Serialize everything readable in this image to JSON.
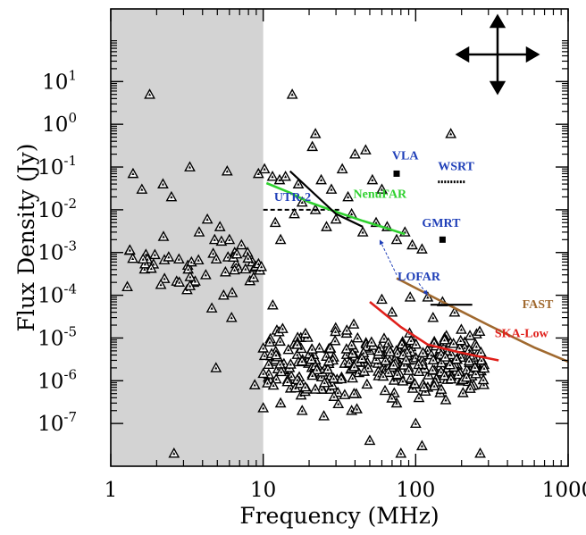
{
  "chart_data": {
    "type": "scatter",
    "xlabel": "Frequency (MHz)",
    "ylabel": "Flux Density (Jy)",
    "xscale": "log",
    "yscale": "log",
    "xlim": [
      1,
      1000
    ],
    "ylim": [
      1e-08,
      500
    ],
    "x_ticks": [
      {
        "value": 1,
        "label": "1"
      },
      {
        "value": 10,
        "label": "10"
      },
      {
        "value": 100,
        "label": "100"
      },
      {
        "value": 1000,
        "label": "1000"
      }
    ],
    "y_ticks": [
      {
        "value": 10,
        "base": "10",
        "exp": "1"
      },
      {
        "value": 1,
        "base": "10",
        "exp": "0"
      },
      {
        "value": 0.1,
        "base": "10",
        "exp": "-1"
      },
      {
        "value": 0.01,
        "base": "10",
        "exp": "-2"
      },
      {
        "value": 0.001,
        "base": "10",
        "exp": "-3"
      },
      {
        "value": 0.0001,
        "base": "10",
        "exp": "-4"
      },
      {
        "value": 1e-05,
        "base": "10",
        "exp": "-5"
      },
      {
        "value": 1e-06,
        "base": "10",
        "exp": "-6"
      },
      {
        "value": 1e-07,
        "base": "10",
        "exp": "-7"
      }
    ],
    "shaded_region": {
      "x_from": 1,
      "x_to": 10,
      "color": "#d3d3d3"
    },
    "grid": false,
    "sources_seed": 7,
    "sources": [
      [
        1.8,
        5
      ],
      [
        15.5,
        5
      ],
      [
        170,
        0.6
      ],
      [
        22,
        0.6
      ],
      [
        21,
        0.3
      ],
      [
        47,
        0.25
      ],
      [
        40,
        0.2
      ],
      [
        1.4,
        0.07
      ],
      [
        1.6,
        0.03
      ],
      [
        2.2,
        0.04
      ],
      [
        2.5,
        0.02
      ],
      [
        3.3,
        0.1
      ],
      [
        5.8,
        0.08
      ],
      [
        9.3,
        0.07
      ],
      [
        10.2,
        0.09
      ],
      [
        11.5,
        0.06
      ],
      [
        12.8,
        0.05
      ],
      [
        14,
        0.06
      ],
      [
        17,
        0.04
      ],
      [
        24,
        0.05
      ],
      [
        33,
        0.09
      ],
      [
        28,
        0.03
      ],
      [
        36,
        0.02
      ],
      [
        60,
        0.03
      ],
      [
        52,
        0.05
      ],
      [
        3.8,
        0.003
      ],
      [
        4.3,
        0.006
      ],
      [
        4.8,
        0.002
      ],
      [
        5.2,
        0.004
      ],
      [
        6,
        0.002
      ],
      [
        6.5,
        0.001
      ],
      [
        7.2,
        0.0015
      ],
      [
        7.9,
        0.001
      ],
      [
        8.5,
        0.0006
      ],
      [
        1.7,
        0.0009
      ],
      [
        2.8,
        0.0007
      ],
      [
        3.2,
        0.0005
      ],
      [
        4.2,
        0.0003
      ],
      [
        3.5,
        0.0002
      ],
      [
        4.6,
        5e-05
      ],
      [
        5.5,
        0.0001
      ],
      [
        6.2,
        3e-05
      ],
      [
        4.9,
        2e-06
      ],
      [
        8.8,
        8e-07
      ],
      [
        2.6,
        2e-08
      ],
      [
        12,
        0.005
      ],
      [
        13,
        0.002
      ],
      [
        16,
        0.008
      ],
      [
        18,
        0.015
      ],
      [
        22,
        0.01
      ],
      [
        26,
        0.004
      ],
      [
        30,
        0.006
      ],
      [
        38,
        0.008
      ],
      [
        45,
        0.003
      ],
      [
        55,
        0.005
      ],
      [
        65,
        0.004
      ],
      [
        75,
        0.002
      ],
      [
        85,
        0.003
      ],
      [
        95,
        0.0015
      ],
      [
        110,
        0.0012
      ],
      [
        60,
        8e-05
      ],
      [
        70,
        4e-05
      ],
      [
        92,
        9e-05
      ],
      [
        120,
        9e-05
      ],
      [
        150,
        7e-05
      ],
      [
        180,
        4e-05
      ],
      [
        130,
        3e-05
      ],
      [
        160,
        1e-05
      ],
      [
        210,
        8e-06
      ],
      [
        200,
        5e-06
      ],
      [
        170,
        3e-06
      ],
      [
        185,
        2e-06
      ],
      [
        150,
        1.5e-06
      ],
      [
        120,
        7e-07
      ],
      [
        105,
        4e-07
      ],
      [
        100,
        1e-07
      ],
      [
        110,
        3e-08
      ],
      [
        80,
        2e-08
      ],
      [
        265,
        2e-08
      ],
      [
        75,
        3e-07
      ],
      [
        90,
        3e-06
      ],
      [
        50,
        4e-08
      ],
      [
        38,
        2e-07
      ],
      [
        25,
        1.5e-07
      ],
      [
        18,
        2e-07
      ],
      [
        13,
        3e-07
      ],
      [
        10.8,
        1.2e-06
      ]
    ],
    "instruments": [
      {
        "name": "VLA",
        "label": "VLA",
        "color": "#1f3fb8",
        "points": [
          [
            75,
            0.07
          ]
        ],
        "marker": "square",
        "label_at": [
          70,
          0.15
        ]
      },
      {
        "name": "WSRT",
        "label": "WSRT",
        "color": "#1f3fb8",
        "line": [
          [
            140,
            0.045
          ],
          [
            210,
            0.045
          ]
        ],
        "style": "dotted",
        "label_at": [
          140,
          0.085
        ]
      },
      {
        "name": "UTR-2",
        "label": "UTR-2",
        "color": "#1f3fb8",
        "line": [
          [
            10,
            0.01
          ],
          [
            32,
            0.01
          ]
        ],
        "style": "dashed",
        "label_at": [
          11.8,
          0.016
        ]
      },
      {
        "name": "NenuFAR",
        "label": "NenuFAR",
        "color": "#2fd12f",
        "line": [
          [
            10.5,
            0.042
          ],
          [
            15,
            0.025
          ],
          [
            20,
            0.015
          ],
          [
            30,
            0.009
          ],
          [
            45,
            0.0055
          ],
          [
            60,
            0.004
          ],
          [
            85,
            0.0027
          ]
        ],
        "style": "solid",
        "label_at": [
          39,
          0.019
        ]
      },
      {
        "name": "GMRT",
        "label": "GMRT",
        "color": "#1f3fb8",
        "points": [
          [
            150,
            0.002
          ]
        ],
        "marker": "square",
        "label_at": [
          110,
          0.004
        ]
      },
      {
        "name": "LOFAR",
        "label": "LOFAR",
        "color": "#1f3fb8",
        "line": [
          [
            15,
            0.08
          ],
          [
            30,
            0.008
          ],
          [
            45,
            0.004
          ]
        ],
        "style": "solid-black",
        "label_at": [
          76,
          0.00022
        ]
      },
      {
        "name": "FAST",
        "label": "FAST",
        "color": "#a0692f",
        "line": [
          [
            75,
            0.00025
          ],
          [
            150,
            7e-05
          ],
          [
            300,
            2e-05
          ],
          [
            600,
            6e-06
          ],
          [
            1000,
            2.8e-06
          ]
        ],
        "style": "solid",
        "label_at": [
          500,
          5e-05
        ]
      },
      {
        "name": "SKA-Low",
        "label": "SKA-Low",
        "color": "#e0201b",
        "line": [
          [
            50,
            7e-05
          ],
          [
            80,
            1.8e-05
          ],
          [
            120,
            7e-06
          ],
          [
            200,
            4.5e-06
          ],
          [
            350,
            3e-06
          ]
        ],
        "style": "solid",
        "label_at": [
          330,
          1.05e-05
        ]
      }
    ],
    "annotations": {
      "lofar_arrows": [
        {
          "from": [
            75,
            0.0003
          ],
          "to": [
            58,
            0.002
          ]
        },
        {
          "from": [
            105,
            0.00019
          ],
          "to": [
            120,
            0.0001
          ]
        }
      ],
      "gmrt_segment": [
        [
          125,
          6e-05
        ],
        [
          235,
          6e-05
        ]
      ],
      "move_arrows": "both-axes"
    }
  }
}
